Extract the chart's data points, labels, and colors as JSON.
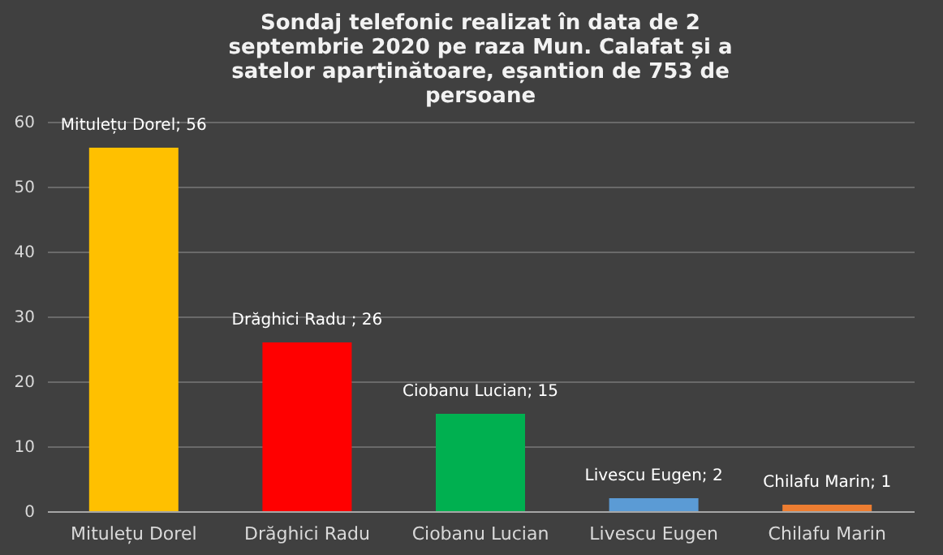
{
  "chart_data": {
    "type": "bar",
    "title": "Sondaj telefonic realizat în data de  2 septembrie 2020 pe raza Mun. Calafat și a satelor aparținătoare, eșantion de 753 de persoane",
    "categories": [
      "Mitulețu Dorel",
      "Drăghici Radu",
      "Ciobanu Lucian",
      "Livescu Eugen",
      "Chilafu Marin"
    ],
    "values": [
      56,
      26,
      15,
      2,
      1
    ],
    "colors": [
      "#ffc000",
      "#ff0000",
      "#00b050",
      "#5b9bd5",
      "#ed7d31"
    ],
    "value_labels": [
      "Mitulețu Dorel; 56",
      "Drăghici Radu ; 26",
      "Ciobanu Lucian; 15",
      "Livescu Eugen; 2",
      "Chilafu Marin; 1"
    ],
    "ylim": [
      0,
      60
    ],
    "yticks": [
      0,
      10,
      20,
      30,
      40,
      50,
      60
    ],
    "grid": "y"
  }
}
